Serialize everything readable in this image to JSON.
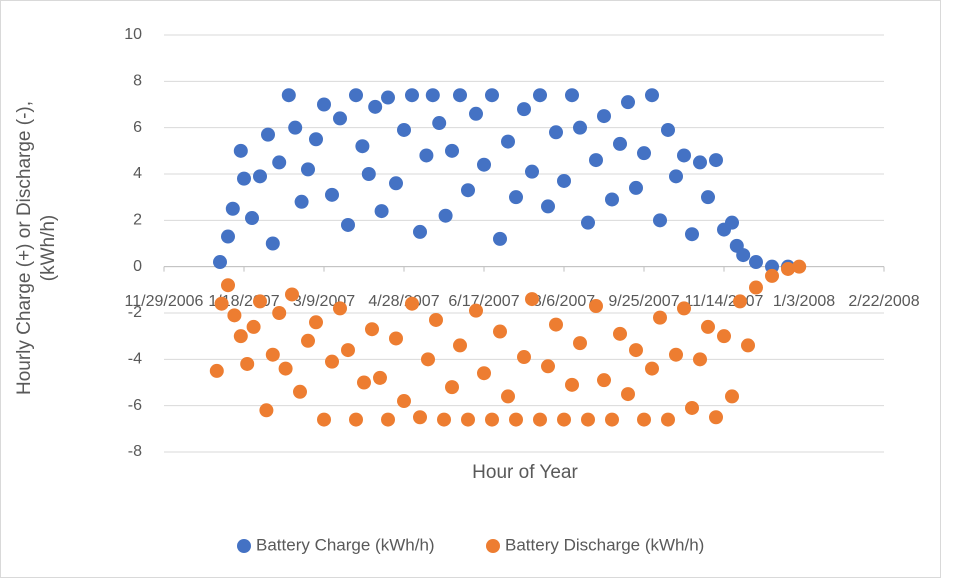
{
  "chart_data": {
    "type": "scatter",
    "x_label": "Hour of Year",
    "y_label": "Hourly Charge (+) or Discharge (-), (kWh/h)",
    "xlim": [
      39050,
      39500
    ],
    "xticks": [
      {
        "value": 39050,
        "label": "11/29/2006"
      },
      {
        "value": 39100,
        "label": "1/18/2007"
      },
      {
        "value": 39150,
        "label": "3/9/2007"
      },
      {
        "value": 39200,
        "label": "4/28/2007"
      },
      {
        "value": 39250,
        "label": "6/17/2007"
      },
      {
        "value": 39300,
        "label": "8/6/2007"
      },
      {
        "value": 39350,
        "label": "9/25/2007"
      },
      {
        "value": 39400,
        "label": "11/14/2007"
      },
      {
        "value": 39450,
        "label": "1/3/2008"
      },
      {
        "value": 39500,
        "label": "2/22/2008"
      }
    ],
    "ylim": [
      -8,
      10
    ],
    "yticks": [
      -8,
      -6,
      -4,
      -2,
      0,
      2,
      4,
      6,
      8,
      10
    ],
    "grid": true,
    "legend": "bottom",
    "series": [
      {
        "name": "Battery Charge (kWh/h)",
        "color": "#4472c4",
        "x": [
          39085,
          39090,
          39093,
          39098,
          39100,
          39105,
          39110,
          39115,
          39118,
          39122,
          39128,
          39132,
          39136,
          39140,
          39145,
          39150,
          39155,
          39160,
          39165,
          39170,
          39174,
          39178,
          39182,
          39186,
          39190,
          39195,
          39200,
          39205,
          39210,
          39214,
          39218,
          39222,
          39226,
          39230,
          39235,
          39240,
          39245,
          39250,
          39255,
          39260,
          39265,
          39270,
          39275,
          39280,
          39285,
          39290,
          39295,
          39300,
          39305,
          39310,
          39315,
          39320,
          39325,
          39330,
          39335,
          39340,
          39345,
          39350,
          39355,
          39360,
          39365,
          39370,
          39375,
          39380,
          39385,
          39390,
          39395,
          39400,
          39405,
          39408,
          39412,
          39420,
          39430,
          39440
        ],
        "values": [
          0.2,
          1.3,
          2.5,
          5.0,
          3.8,
          2.1,
          3.9,
          5.7,
          1.0,
          4.5,
          7.4,
          6.0,
          2.8,
          4.2,
          5.5,
          7.0,
          3.1,
          6.4,
          1.8,
          7.4,
          5.2,
          4.0,
          6.9,
          2.4,
          7.3,
          3.6,
          5.9,
          7.4,
          1.5,
          4.8,
          7.4,
          6.2,
          2.2,
          5.0,
          7.4,
          3.3,
          6.6,
          4.4,
          7.4,
          1.2,
          5.4,
          3.0,
          6.8,
          4.1,
          7.4,
          2.6,
          5.8,
          3.7,
          7.4,
          6.0,
          1.9,
          4.6,
          6.5,
          2.9,
          5.3,
          7.1,
          3.4,
          4.9,
          7.4,
          2.0,
          5.9,
          3.9,
          4.8,
          1.4,
          4.5,
          3.0,
          4.6,
          1.6,
          1.9,
          0.9,
          0.5,
          0.2,
          0,
          0
        ]
      },
      {
        "name": "Battery Discharge (kWh/h)",
        "color": "#ed7d31",
        "x": [
          39083,
          39086,
          39090,
          39094,
          39098,
          39102,
          39106,
          39110,
          39114,
          39118,
          39122,
          39126,
          39130,
          39135,
          39140,
          39145,
          39150,
          39155,
          39160,
          39165,
          39170,
          39175,
          39180,
          39185,
          39190,
          39195,
          39200,
          39205,
          39210,
          39215,
          39220,
          39225,
          39230,
          39235,
          39240,
          39245,
          39250,
          39255,
          39260,
          39265,
          39270,
          39275,
          39280,
          39285,
          39290,
          39295,
          39300,
          39305,
          39310,
          39315,
          39320,
          39325,
          39330,
          39335,
          39340,
          39345,
          39350,
          39355,
          39360,
          39365,
          39370,
          39375,
          39380,
          39385,
          39390,
          39395,
          39400,
          39405,
          39410,
          39415,
          39420,
          39430,
          39440,
          39447
        ],
        "values": [
          -4.5,
          -1.6,
          -0.8,
          -2.1,
          -3.0,
          -4.2,
          -2.6,
          -1.5,
          -6.2,
          -3.8,
          -2.0,
          -4.4,
          -1.2,
          -5.4,
          -3.2,
          -2.4,
          -6.6,
          -4.1,
          -1.8,
          -3.6,
          -6.6,
          -5.0,
          -2.7,
          -4.8,
          -6.6,
          -3.1,
          -5.8,
          -1.6,
          -6.5,
          -4.0,
          -2.3,
          -6.6,
          -5.2,
          -3.4,
          -6.6,
          -1.9,
          -4.6,
          -6.6,
          -2.8,
          -5.6,
          -6.6,
          -3.9,
          -1.4,
          -6.6,
          -4.3,
          -2.5,
          -6.6,
          -5.1,
          -3.3,
          -6.6,
          -1.7,
          -4.9,
          -6.6,
          -2.9,
          -5.5,
          -3.6,
          -6.6,
          -4.4,
          -2.2,
          -6.6,
          -3.8,
          -1.8,
          -6.1,
          -4.0,
          -2.6,
          -6.5,
          -3.0,
          -5.6,
          -1.5,
          -3.4,
          -0.9,
          -0.4,
          -0.1,
          0
        ]
      }
    ]
  }
}
